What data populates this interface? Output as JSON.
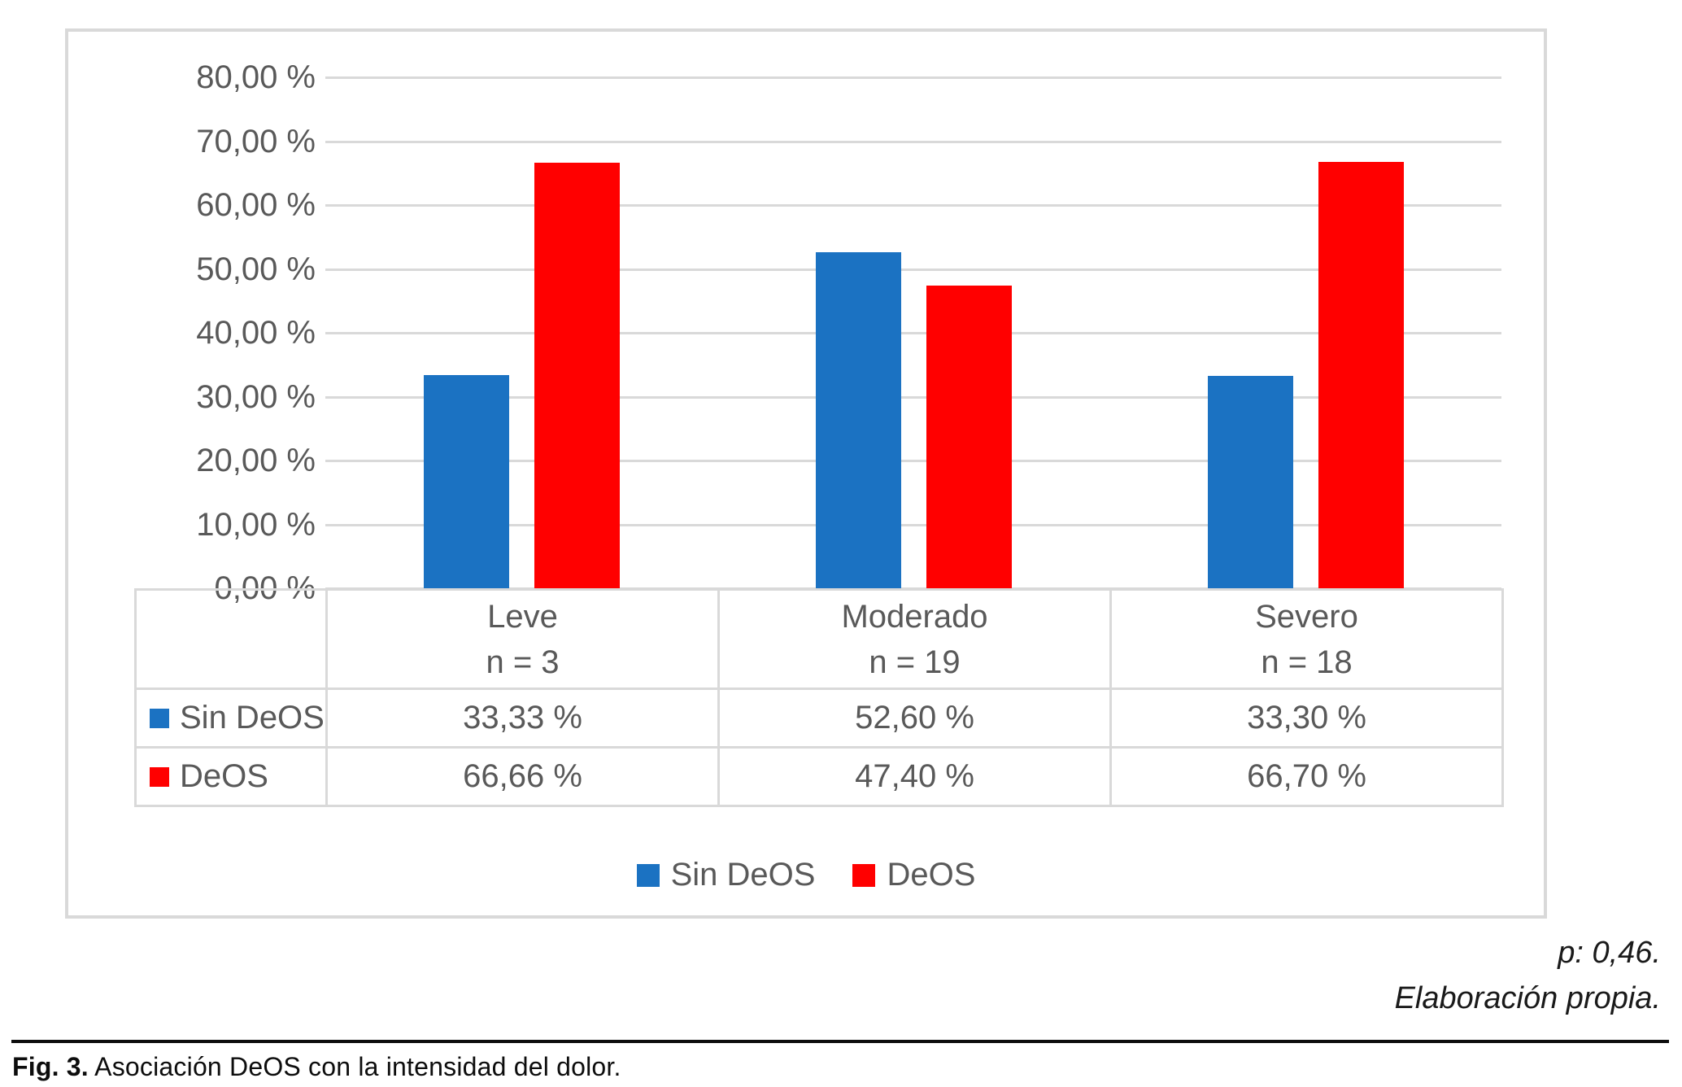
{
  "figure": {
    "caption_label": "Fig. 3.",
    "caption_text": " Asociación DeOS con la intensidad del dolor.",
    "p_value_note": "p: 0,46.",
    "source_note": "Elaboración propia."
  },
  "chart_data": {
    "type": "bar",
    "title": "",
    "categories": [
      "Leve",
      "Moderado",
      "Severo"
    ],
    "category_counts": [
      "n = 3",
      "n = 19",
      "n = 18"
    ],
    "series": [
      {
        "name": "Sin DeOS",
        "color": "#1b72c2",
        "values": [
          33.33,
          52.6,
          33.3
        ],
        "value_labels": [
          "33,33 %",
          "52,60 %",
          "33,30 %"
        ]
      },
      {
        "name": "DeOS",
        "color": "#ff0000",
        "values": [
          66.66,
          47.4,
          66.7
        ],
        "value_labels": [
          "66,66 %",
          "47,40 %",
          "66,70 %"
        ]
      }
    ],
    "ylim": [
      0,
      80
    ],
    "ytick_step": 10,
    "yticks_top_to_bottom": [
      "80,00 %",
      "70,00 %",
      "60,00 %",
      "50,00 %",
      "40,00 %",
      "30,00 %",
      "20,00 %",
      "10,00 %",
      "0,00 %"
    ],
    "grid": true,
    "legend_position": "bottom",
    "has_data_table": true
  },
  "colors": {
    "sin_deos": "#1b72c2",
    "deos": "#ff0000",
    "gridline": "#d9d9d9",
    "frame_border": "#d9d9d9",
    "axis_text": "#595959"
  }
}
